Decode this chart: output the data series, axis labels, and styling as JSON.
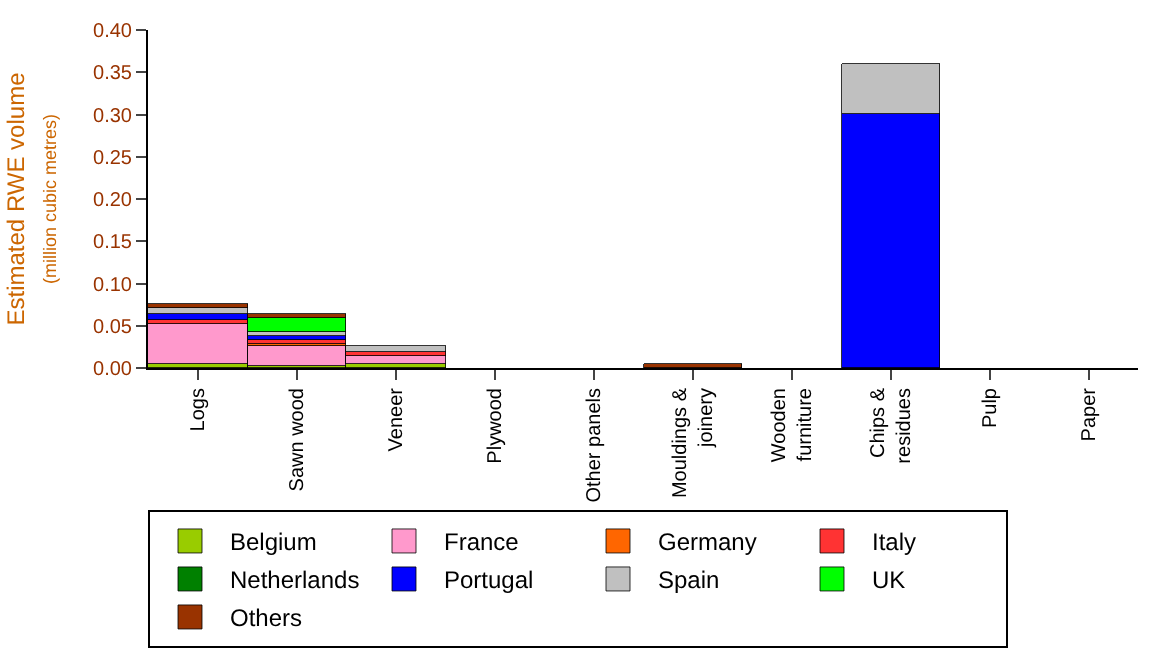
{
  "chart_data": {
    "type": "bar",
    "stacked": true,
    "ylabel": "Estimated RWE volume\n(million cubic metres)",
    "categories": [
      "Logs",
      "Sawn wood",
      "Veneer",
      "Plywood",
      "Other panels",
      "Mouldings & joinery",
      "Wooden furniture",
      "Chips & residues",
      "Pulp",
      "Paper"
    ],
    "series": [
      {
        "name": "Belgium",
        "color": "#99cc00",
        "values": [
          0.004,
          0.002,
          0.005,
          null,
          null,
          null,
          null,
          null,
          null,
          null
        ]
      },
      {
        "name": "France",
        "color": "#ff99cc",
        "values": [
          0.047,
          0.024,
          0.01,
          null,
          null,
          null,
          null,
          null,
          null,
          null
        ]
      },
      {
        "name": "Germany",
        "color": "#ff6600",
        "values": [
          null,
          0.002,
          null,
          null,
          null,
          null,
          null,
          null,
          null,
          null
        ]
      },
      {
        "name": "Italy",
        "color": "#ff3333",
        "values": [
          0.007,
          0.006,
          0.005,
          null,
          null,
          null,
          null,
          null,
          null,
          null
        ]
      },
      {
        "name": "Netherlands",
        "color": "#008000",
        "values": [
          null,
          null,
          null,
          null,
          null,
          null,
          null,
          null,
          null,
          null
        ]
      },
      {
        "name": "Portugal",
        "color": "#0000ff",
        "values": [
          0.005,
          0.004,
          null,
          null,
          null,
          null,
          null,
          0.3,
          null,
          null
        ]
      },
      {
        "name": "Spain",
        "color": "#c0c0c0",
        "values": [
          0.008,
          0.004,
          0.005,
          null,
          null,
          null,
          null,
          0.06,
          null,
          null
        ]
      },
      {
        "name": "UK",
        "color": "#00ff00",
        "values": [
          null,
          0.017,
          null,
          null,
          null,
          null,
          null,
          null,
          null,
          null
        ]
      },
      {
        "name": "Others",
        "color": "#993300",
        "values": [
          0.004,
          0.006,
          null,
          null,
          null,
          0.005,
          null,
          null,
          null,
          null
        ]
      }
    ],
    "ylim": [
      0,
      0.4
    ],
    "yticks": [
      {
        "value": 0,
        "label": "0.00"
      },
      {
        "value": 0.05,
        "label": "0.05"
      },
      {
        "value": 0.1,
        "label": "0.10"
      },
      {
        "value": 0.15,
        "label": "0.15"
      },
      {
        "value": 0.2,
        "label": "0.20"
      },
      {
        "value": 0.25,
        "label": "0.25"
      },
      {
        "value": 0.3,
        "label": "0.30"
      },
      {
        "value": 0.35,
        "label": "0.35"
      },
      {
        "value": 0.4,
        "label": "0.40"
      }
    ],
    "legend": "bottom"
  }
}
